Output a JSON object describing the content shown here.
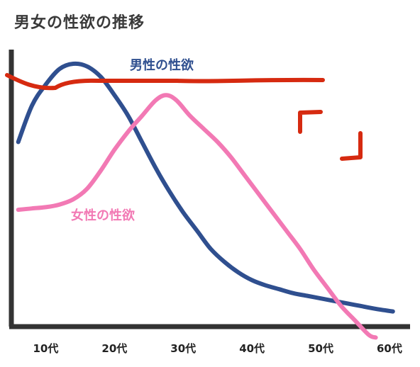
{
  "title": "男女の性欲の推移",
  "colors": {
    "male": "#2f4f8f",
    "female": "#f279b4",
    "annotation": "#d62a10",
    "axis": "#333333"
  },
  "chart_data": {
    "type": "line",
    "title": "男女の性欲の推移",
    "xlabel": "",
    "ylabel": "",
    "x_ticks": [
      "10代",
      "20代",
      "30代",
      "40代",
      "50代",
      "60代"
    ],
    "x_tick_values": [
      10,
      20,
      30,
      40,
      50,
      60
    ],
    "xlim": [
      5,
      63
    ],
    "ylim": [
      0,
      100
    ],
    "grid": false,
    "series": [
      {
        "name": "男性の性欲",
        "key": "male",
        "x": [
          6,
          8,
          10,
          12,
          14,
          16,
          18,
          20,
          22,
          24,
          26,
          28,
          30,
          32,
          34,
          36,
          38,
          40,
          42,
          44,
          46,
          48,
          50,
          52,
          54,
          56,
          58,
          60.5
        ],
        "y": [
          70,
          84,
          92,
          98,
          100,
          99,
          95,
          88,
          80,
          70,
          60,
          51,
          43,
          36,
          29,
          24,
          20,
          17,
          15,
          13.5,
          12,
          11,
          10,
          9,
          8,
          7,
          6,
          5
        ]
      },
      {
        "name": "女性の性欲",
        "key": "female",
        "x": [
          6,
          8,
          10,
          12,
          14,
          16,
          18,
          20,
          22,
          24,
          26,
          27.5,
          29,
          31,
          33,
          35,
          37,
          39,
          41,
          43,
          45,
          47,
          49,
          51,
          53,
          55,
          57,
          58
        ],
        "y": [
          44,
          44.5,
          45,
          46,
          48,
          52,
          59,
          67,
          74,
          80,
          86,
          88,
          86,
          80,
          75,
          70,
          64,
          57,
          50,
          43,
          36,
          29,
          21,
          14,
          7,
          1.5,
          -4,
          -5
        ]
      }
    ],
    "annotations": [
      {
        "text": "男性の性欲",
        "series": "male"
      },
      {
        "text": "女性の性欲",
        "series": "female"
      }
    ]
  }
}
